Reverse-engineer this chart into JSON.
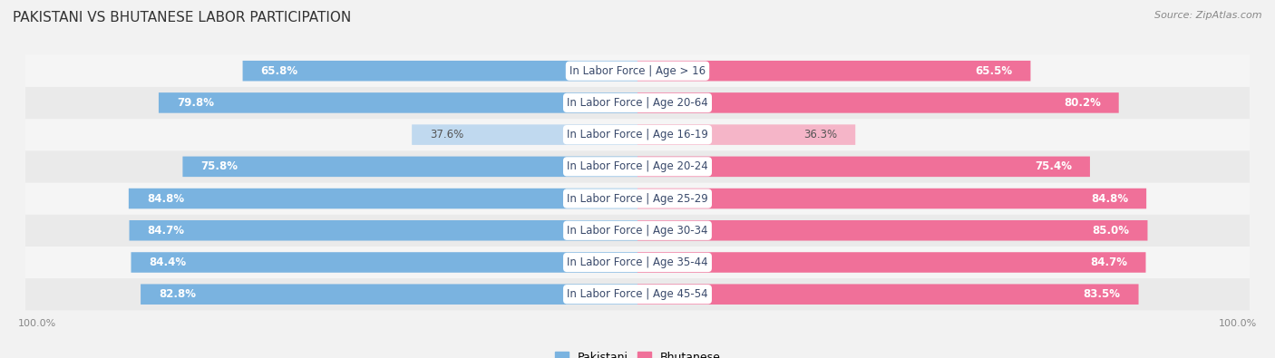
{
  "title": "PAKISTANI VS BHUTANESE LABOR PARTICIPATION",
  "source": "Source: ZipAtlas.com",
  "categories": [
    "In Labor Force | Age > 16",
    "In Labor Force | Age 20-64",
    "In Labor Force | Age 16-19",
    "In Labor Force | Age 20-24",
    "In Labor Force | Age 25-29",
    "In Labor Force | Age 30-34",
    "In Labor Force | Age 35-44",
    "In Labor Force | Age 45-54"
  ],
  "pakistani_values": [
    65.8,
    79.8,
    37.6,
    75.8,
    84.8,
    84.7,
    84.4,
    82.8
  ],
  "bhutanese_values": [
    65.5,
    80.2,
    36.3,
    75.4,
    84.8,
    85.0,
    84.7,
    83.5
  ],
  "pakistani_color": "#7AB3E0",
  "pakistani_color_light": "#C0D9EF",
  "bhutanese_color": "#F07099",
  "bhutanese_color_light": "#F5B5C8",
  "bar_height": 0.62,
  "bg_color": "#F2F2F2",
  "row_colors": [
    "#EAEAEA",
    "#F5F5F5"
  ],
  "label_fontsize": 8.5,
  "title_fontsize": 11,
  "source_fontsize": 8,
  "legend_fontsize": 9,
  "max_value": 100.0,
  "center_label_color": "#3a4a6b"
}
